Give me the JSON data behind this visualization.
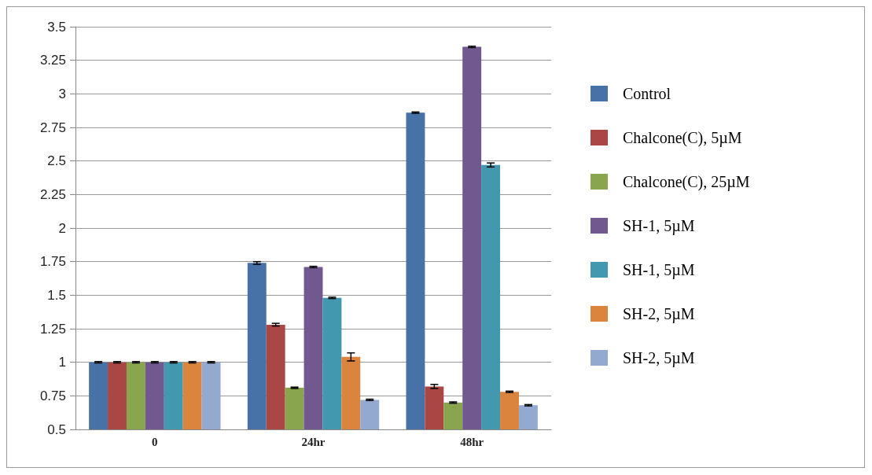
{
  "chart_data": {
    "type": "bar",
    "categories": [
      "0",
      "24hr",
      "48hr"
    ],
    "series": [
      {
        "name": "Control",
        "color": "#4672a8",
        "values": [
          1,
          1.74,
          2.86
        ],
        "errors": [
          0.005,
          0.01,
          0.005
        ]
      },
      {
        "name": "Chalcone(C), 5µM",
        "color": "#aa4644",
        "values": [
          1,
          1.28,
          0.82
        ],
        "errors": [
          0.005,
          0.01,
          0.015
        ]
      },
      {
        "name": "Chalcone(C), 25µM",
        "color": "#89a54e",
        "values": [
          1,
          0.81,
          0.7
        ],
        "errors": [
          0.005,
          0.005,
          0.005
        ]
      },
      {
        "name": "SH-1, 5µM",
        "color": "#71588f",
        "values": [
          1,
          1.71,
          3.35
        ],
        "errors": [
          0.005,
          0.005,
          0.005
        ]
      },
      {
        "name": "SH-1, 5µM",
        "color": "#4198af",
        "values": [
          1,
          1.48,
          2.47
        ],
        "errors": [
          0.005,
          0.005,
          0.015
        ]
      },
      {
        "name": "SH-2, 5µM",
        "color": "#db843d",
        "values": [
          1,
          1.04,
          0.78
        ],
        "errors": [
          0.005,
          0.03,
          0.005
        ]
      },
      {
        "name": "SH-2, 5µM",
        "color": "#93a9cf",
        "values": [
          1,
          0.72,
          0.68
        ],
        "errors": [
          0.005,
          0.005,
          0.005
        ]
      }
    ],
    "ylim": [
      0.5,
      3.5
    ],
    "yticks": [
      0.5,
      0.75,
      1,
      1.25,
      1.5,
      1.75,
      2,
      2.25,
      2.5,
      2.75,
      3,
      3.25,
      3.5
    ],
    "grid": "y",
    "legend": "right"
  }
}
